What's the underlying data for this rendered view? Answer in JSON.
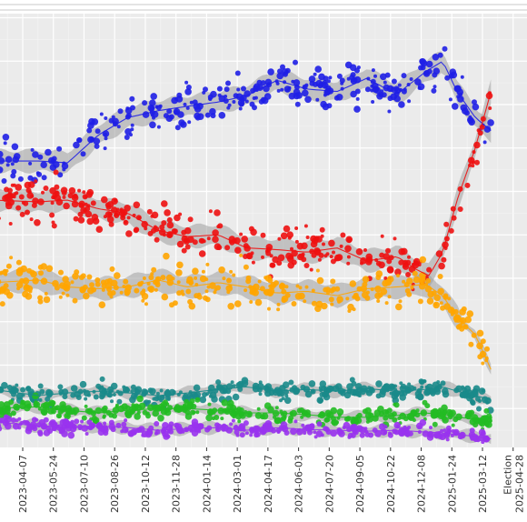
{
  "chart_data": {
    "type": "scatter",
    "title": "",
    "xlabel": "",
    "ylabel": "",
    "x_type": "date",
    "xlim": [
      "2023-02-20",
      "2025-05-15"
    ],
    "ylim": [
      0,
      50
    ],
    "grid": true,
    "legend": "none",
    "x_ticks": [
      "2023-04-07",
      "2023-05-24",
      "2023-07-10",
      "2023-08-26",
      "2023-10-12",
      "2023-11-28",
      "2024-01-14",
      "2024-03-01",
      "2024-04-17",
      "2024-06-03",
      "2024-07-20",
      "2024-09-05",
      "2024-10-22",
      "2024-12-08",
      "2025-01-24",
      "2025-03-12"
    ],
    "election_label": [
      "Election",
      "2025-04-28"
    ],
    "series": [
      {
        "color": "#1f1fe6",
        "trend": [
          [
            "2023-02-20",
            33.5
          ],
          [
            "2023-05-01",
            33.5
          ],
          [
            "2023-06-15",
            33.3
          ],
          [
            "2023-08-01",
            36.5
          ],
          [
            "2023-09-15",
            38.5
          ],
          [
            "2023-11-01",
            39.3
          ],
          [
            "2023-12-15",
            39.8
          ],
          [
            "2024-02-01",
            40.3
          ],
          [
            "2024-03-15",
            41.0
          ],
          [
            "2024-05-01",
            42.8
          ],
          [
            "2024-06-15",
            41.8
          ],
          [
            "2024-08-01",
            41.5
          ],
          [
            "2024-09-15",
            43.0
          ],
          [
            "2024-11-01",
            41.2
          ],
          [
            "2024-12-15",
            43.8
          ],
          [
            "2025-01-10",
            45.0
          ],
          [
            "2025-02-01",
            41.5
          ],
          [
            "2025-03-01",
            38.5
          ],
          [
            "2025-03-25",
            37.0
          ]
        ]
      },
      {
        "color": "#ee1111",
        "trend": [
          [
            "2023-02-20",
            29.0
          ],
          [
            "2023-05-01",
            28.8
          ],
          [
            "2023-06-15",
            29.0
          ],
          [
            "2023-08-01",
            28.0
          ],
          [
            "2023-09-15",
            27.5
          ],
          [
            "2023-11-01",
            25.5
          ],
          [
            "2023-12-15",
            24.8
          ],
          [
            "2024-02-01",
            25.0
          ],
          [
            "2024-03-15",
            23.5
          ],
          [
            "2024-05-01",
            23.3
          ],
          [
            "2024-06-15",
            23.0
          ],
          [
            "2024-08-01",
            23.5
          ],
          [
            "2024-09-15",
            22.0
          ],
          [
            "2024-11-01",
            22.5
          ],
          [
            "2024-12-01",
            21.0
          ],
          [
            "2024-12-20",
            20.3
          ],
          [
            "2025-01-10",
            23.0
          ],
          [
            "2025-02-01",
            29.0
          ],
          [
            "2025-03-01",
            35.0
          ],
          [
            "2025-03-25",
            41.5
          ]
        ]
      },
      {
        "color": "#ffa500",
        "trend": [
          [
            "2023-02-20",
            19.5
          ],
          [
            "2023-05-01",
            19.8
          ],
          [
            "2023-06-15",
            19.0
          ],
          [
            "2023-08-01",
            18.8
          ],
          [
            "2023-09-15",
            19.0
          ],
          [
            "2023-11-01",
            19.8
          ],
          [
            "2023-12-15",
            19.0
          ],
          [
            "2024-02-01",
            19.5
          ],
          [
            "2024-03-15",
            19.0
          ],
          [
            "2024-05-01",
            18.3
          ],
          [
            "2024-06-15",
            18.5
          ],
          [
            "2024-08-01",
            18.0
          ],
          [
            "2024-09-15",
            18.8
          ],
          [
            "2024-11-01",
            19.0
          ],
          [
            "2024-12-15",
            19.3
          ],
          [
            "2025-01-10",
            18.0
          ],
          [
            "2025-02-01",
            15.5
          ],
          [
            "2025-03-01",
            13.5
          ],
          [
            "2025-03-25",
            9.5
          ]
        ]
      },
      {
        "color": "#1a8a8a",
        "trend": [
          [
            "2023-02-20",
            7.2
          ],
          [
            "2023-05-01",
            6.5
          ],
          [
            "2023-06-15",
            6.8
          ],
          [
            "2023-08-01",
            7.0
          ],
          [
            "2023-09-15",
            6.8
          ],
          [
            "2023-11-01",
            6.5
          ],
          [
            "2023-12-15",
            6.8
          ],
          [
            "2024-02-01",
            7.2
          ],
          [
            "2024-03-15",
            7.5
          ],
          [
            "2024-05-01",
            7.0
          ],
          [
            "2024-06-15",
            7.2
          ],
          [
            "2024-08-01",
            7.0
          ],
          [
            "2024-09-15",
            7.3
          ],
          [
            "2024-11-01",
            7.0
          ],
          [
            "2024-12-15",
            7.2
          ],
          [
            "2025-01-10",
            7.5
          ],
          [
            "2025-02-01",
            7.0
          ],
          [
            "2025-03-01",
            6.5
          ],
          [
            "2025-03-25",
            6.0
          ]
        ]
      },
      {
        "color": "#22bb22",
        "trend": [
          [
            "2023-02-20",
            5.0
          ],
          [
            "2023-05-01",
            5.2
          ],
          [
            "2023-06-15",
            4.8
          ],
          [
            "2023-08-01",
            4.5
          ],
          [
            "2023-09-15",
            4.8
          ],
          [
            "2023-11-01",
            5.0
          ],
          [
            "2023-12-15",
            5.0
          ],
          [
            "2024-02-01",
            4.8
          ],
          [
            "2024-03-15",
            4.5
          ],
          [
            "2024-05-01",
            4.5
          ],
          [
            "2024-06-15",
            4.3
          ],
          [
            "2024-08-01",
            4.0
          ],
          [
            "2024-09-15",
            4.0
          ],
          [
            "2024-11-01",
            4.2
          ],
          [
            "2024-12-15",
            4.5
          ],
          [
            "2025-01-10",
            4.3
          ],
          [
            "2025-02-01",
            4.0
          ],
          [
            "2025-03-01",
            3.8
          ],
          [
            "2025-03-25",
            3.5
          ]
        ]
      },
      {
        "color": "#9933ee",
        "trend": [
          [
            "2023-02-20",
            3.5
          ],
          [
            "2023-05-01",
            3.0
          ],
          [
            "2023-06-15",
            2.8
          ],
          [
            "2023-08-01",
            3.0
          ],
          [
            "2023-09-15",
            2.8
          ],
          [
            "2023-11-01",
            2.5
          ],
          [
            "2023-12-15",
            2.7
          ],
          [
            "2024-02-01",
            2.8
          ],
          [
            "2024-03-15",
            2.5
          ],
          [
            "2024-05-01",
            2.8
          ],
          [
            "2024-06-15",
            2.6
          ],
          [
            "2024-08-01",
            2.5
          ],
          [
            "2024-09-15",
            2.4
          ],
          [
            "2024-11-01",
            2.5
          ],
          [
            "2024-12-15",
            2.3
          ],
          [
            "2025-01-10",
            2.2
          ],
          [
            "2025-02-01",
            2.0
          ],
          [
            "2025-03-01",
            1.8
          ],
          [
            "2025-03-25",
            1.5
          ]
        ]
      }
    ]
  }
}
